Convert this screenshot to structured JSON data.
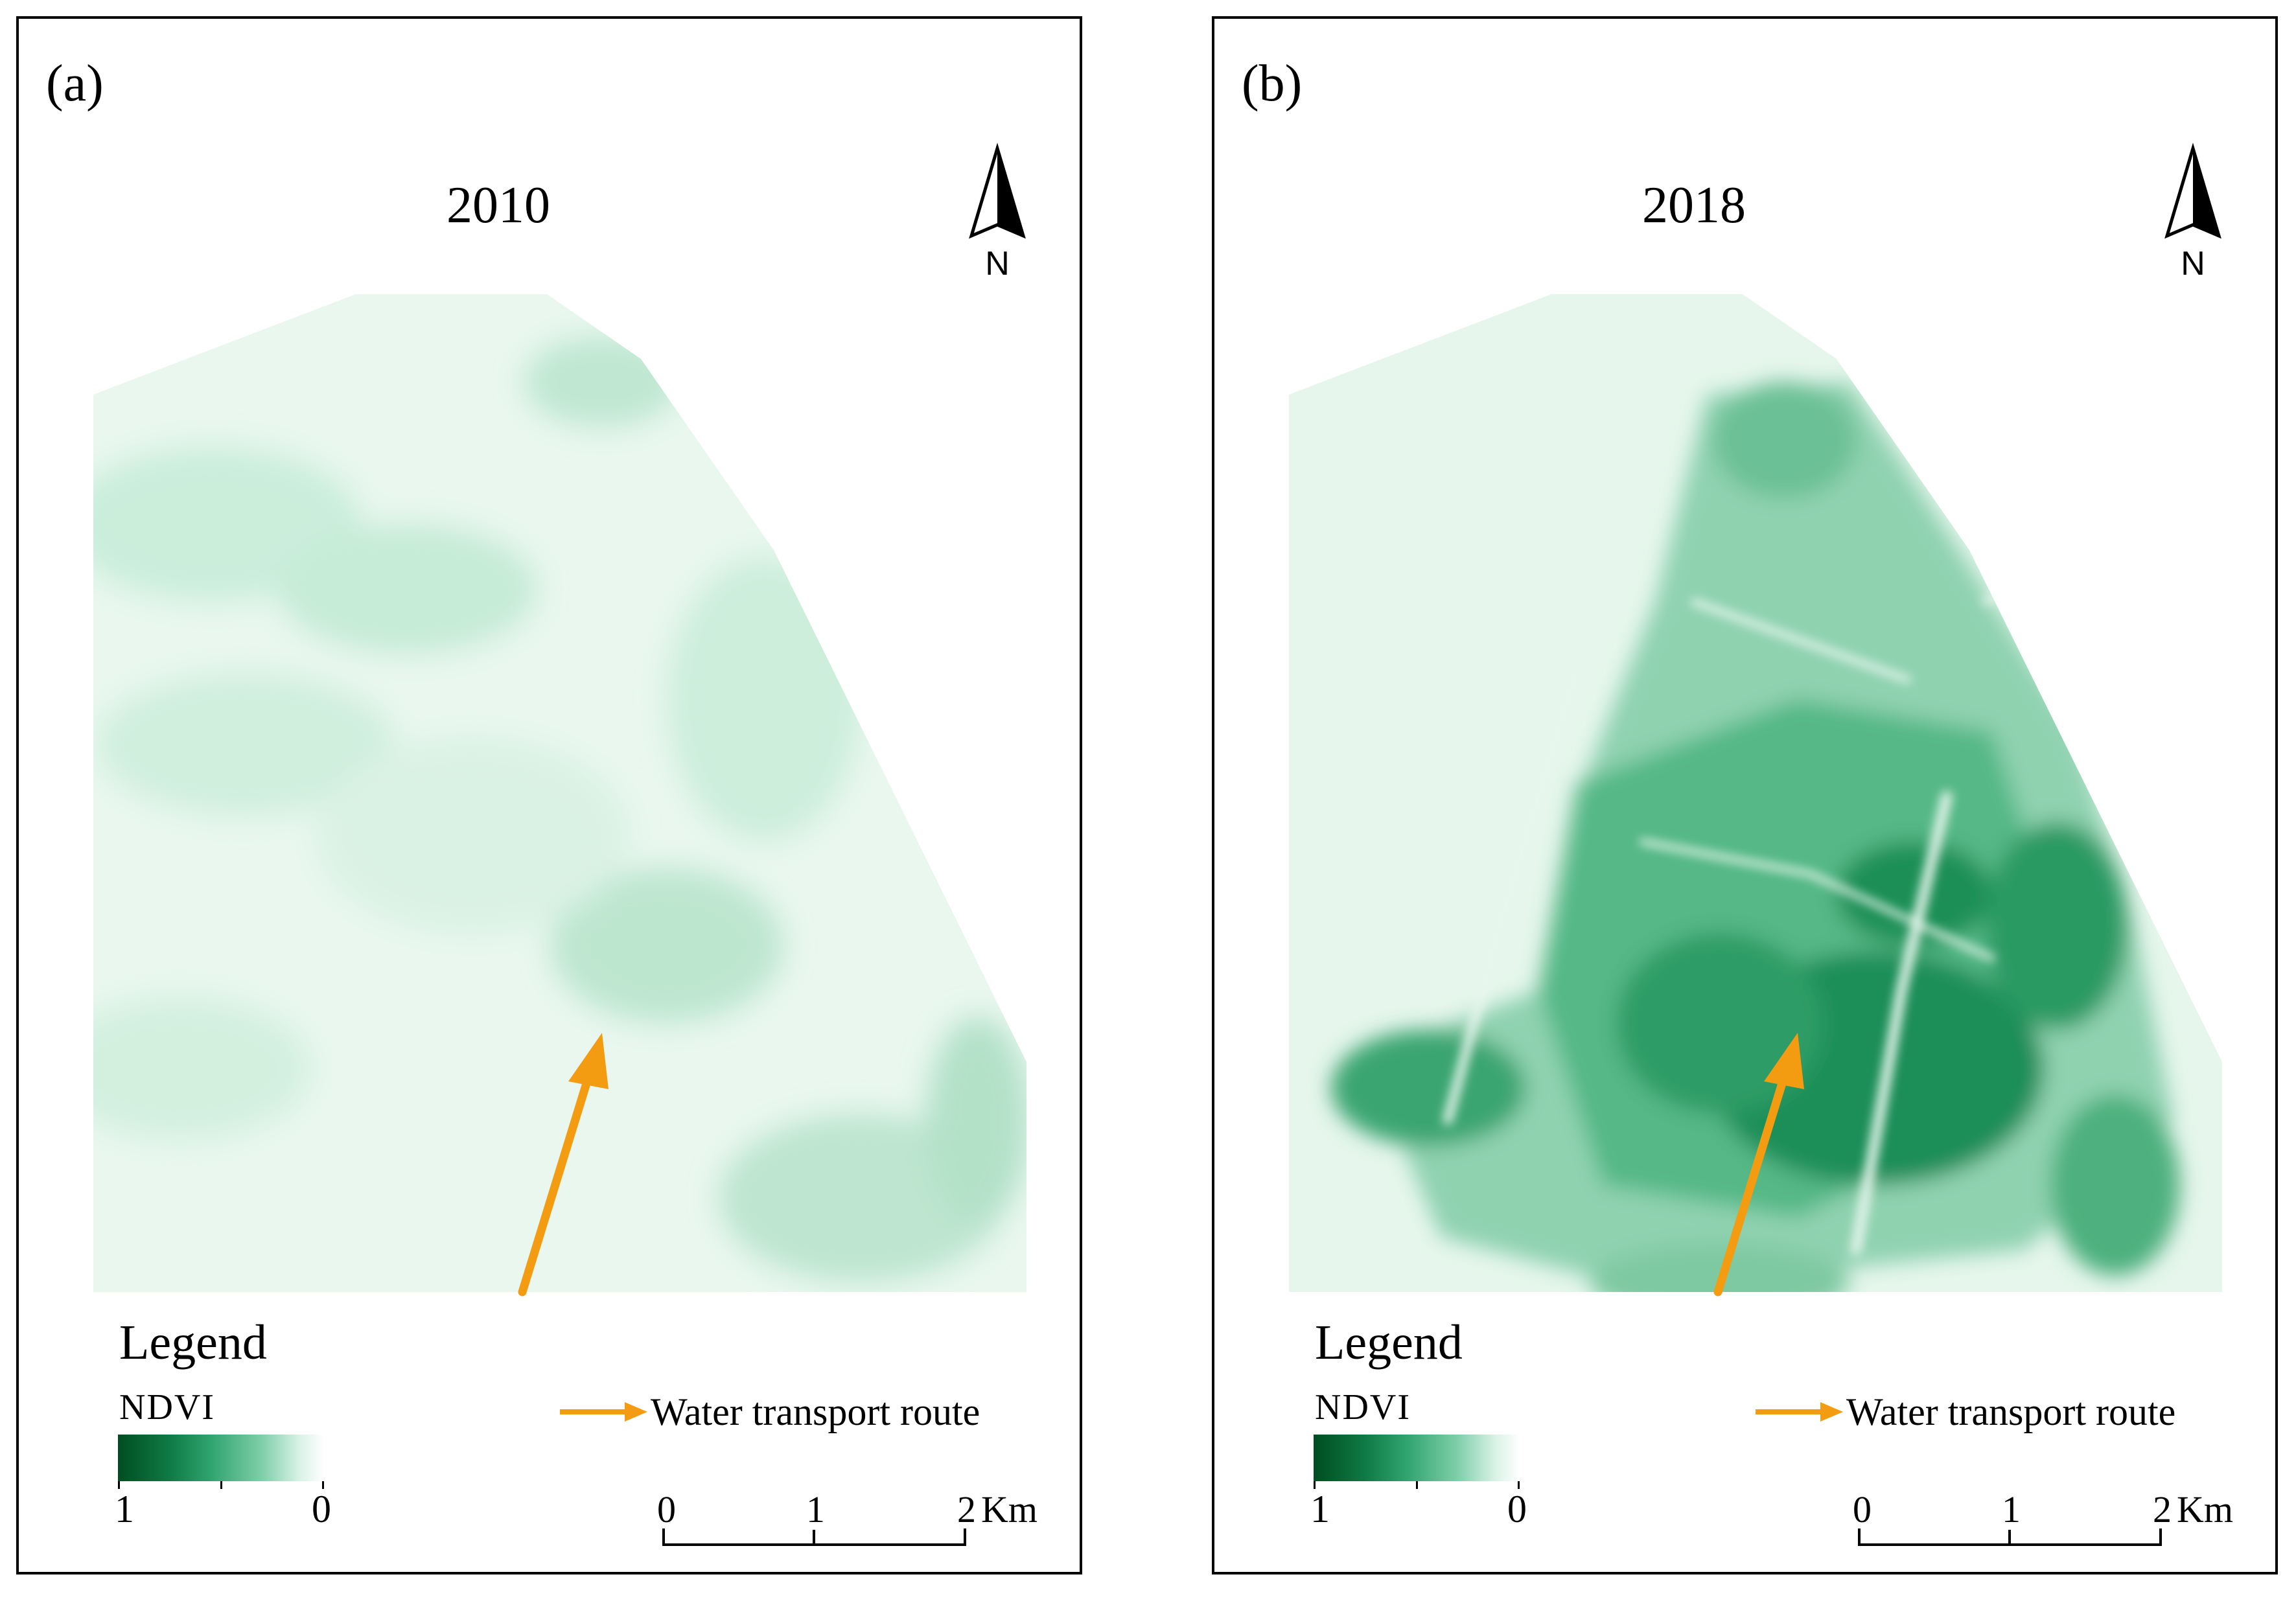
{
  "panels": [
    {
      "label": "(a)",
      "year": "2010",
      "north": "N",
      "legend_title": "Legend",
      "ndvi_title": "NDVI",
      "ramp_high": "1",
      "ramp_low": "0",
      "route_label": "Water transport route",
      "scale": {
        "s0": "0",
        "s1": "1",
        "s2": "2",
        "unit": "Km"
      }
    },
    {
      "label": "(b)",
      "year": "2018",
      "north": "N",
      "legend_title": "Legend",
      "ndvi_title": "NDVI",
      "ramp_high": "1",
      "ramp_low": "0",
      "route_label": "Water transport route",
      "scale": {
        "s0": "0",
        "s1": "1",
        "s2": "2",
        "unit": "Km"
      }
    }
  ],
  "colors": {
    "ndvi_dark": "#004d21",
    "ndvi_mid": "#2fa46f",
    "ndvi_light": "#d8f2e6",
    "route": "#f39c12",
    "border": "#000000"
  },
  "icons": [
    "north-arrow-icon",
    "route-arrow-icon",
    "scale-bar-icon"
  ]
}
